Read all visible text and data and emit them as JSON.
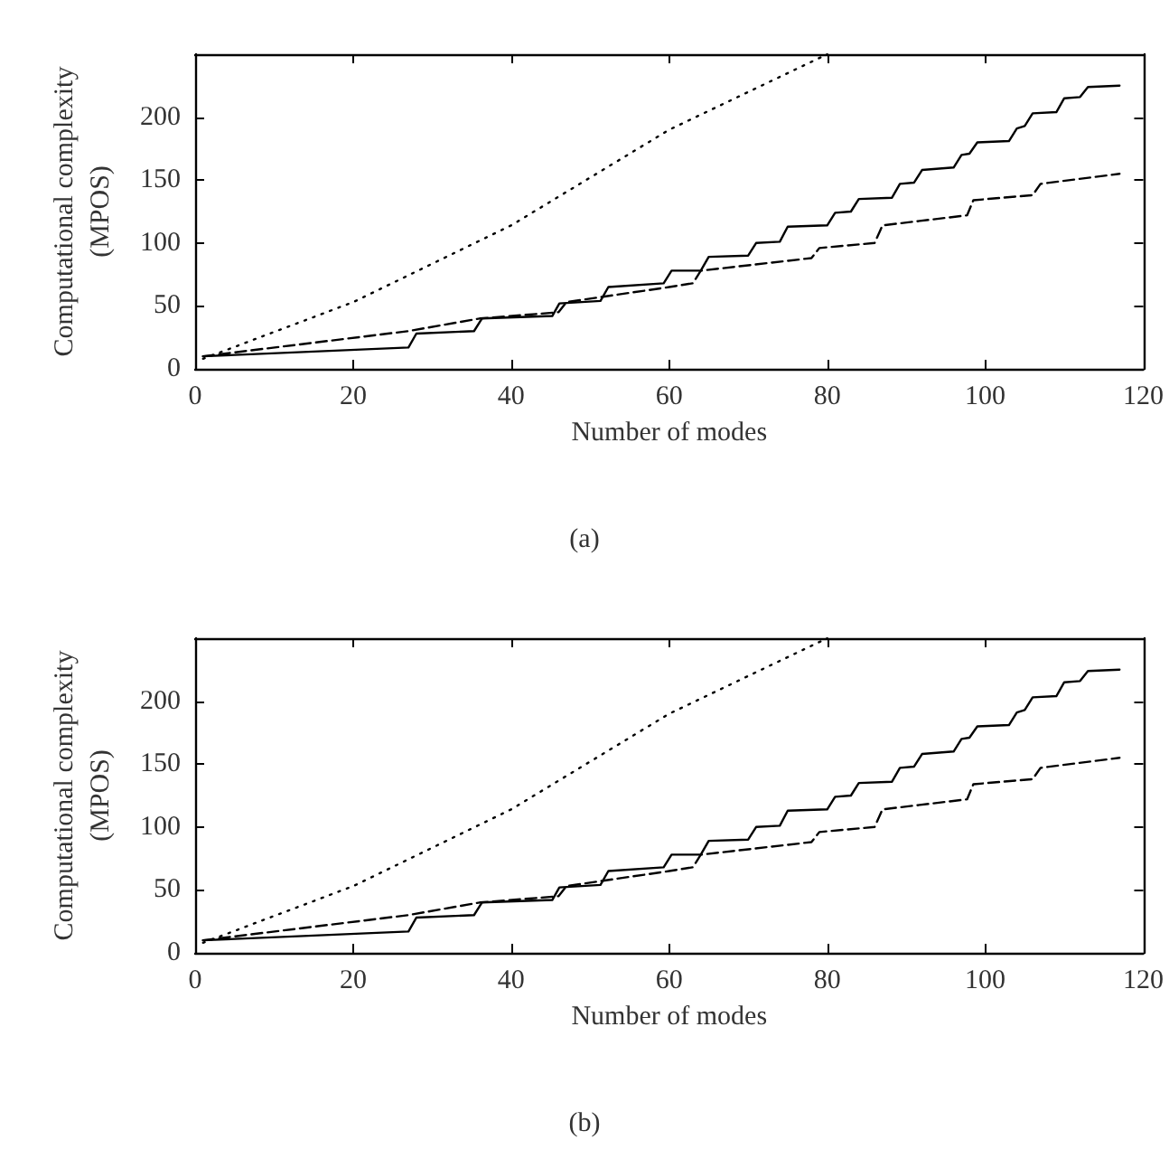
{
  "chart_data": [
    {
      "type": "line",
      "xlabel": "Number of modes",
      "ylabel": "Computational complexity\n(MPOS)",
      "annotations": [
        "(a)"
      ],
      "xlim": [
        0,
        120
      ],
      "ylim": [
        0,
        250
      ],
      "xticks": [
        0,
        20,
        40,
        60,
        80,
        100,
        120
      ],
      "yticks": [
        0,
        50,
        100,
        150,
        200
      ],
      "grid": false,
      "marker": "none",
      "series": [
        {
          "color": "#000000",
          "line_style": "solid",
          "x": [
            1,
            27,
            28,
            35.3,
            36.3,
            45.2,
            46.1,
            51.3,
            52.3,
            59.3,
            60.3,
            64,
            65,
            70,
            71,
            74,
            75,
            80,
            81,
            83,
            84,
            88.2,
            89.2,
            91,
            92,
            96,
            97,
            98,
            99,
            103,
            104,
            105,
            106,
            109,
            110,
            112,
            113,
            117
          ],
          "values": [
            10,
            17,
            28,
            30,
            40,
            42,
            52,
            54,
            65,
            68,
            78,
            78,
            89,
            90,
            100,
            101,
            113,
            114,
            124,
            125,
            135,
            136,
            147,
            148,
            158,
            160,
            170,
            171,
            180,
            181,
            191,
            193,
            203,
            204,
            215,
            216,
            224,
            225
          ]
        },
        {
          "color": "#000000",
          "line_style": "dashed",
          "x": [
            1,
            27,
            36,
            46,
            47,
            60,
            63,
            64,
            78,
            79,
            86,
            87,
            97.7,
            98.5,
            106,
            107,
            117
          ],
          "values": [
            10,
            30,
            40,
            45,
            53,
            65,
            68,
            78,
            88,
            96,
            100,
            114,
            122,
            134,
            138,
            147,
            155
          ]
        },
        {
          "color": "#000000",
          "line_style": "dotted",
          "x": [
            1,
            20,
            40,
            60,
            70,
            80
          ],
          "values": [
            8,
            53,
            114,
            190,
            220,
            250
          ]
        }
      ]
    },
    {
      "type": "line",
      "xlabel": "Number of modes",
      "ylabel": "Computational complexity\n(MPOS)",
      "annotations": [
        "(b)"
      ],
      "xlim": [
        0,
        120
      ],
      "ylim": [
        0,
        250
      ],
      "xticks": [
        0,
        20,
        40,
        60,
        80,
        100,
        120
      ],
      "yticks": [
        0,
        50,
        100,
        150,
        200
      ],
      "grid": false,
      "marker": "none",
      "series": [
        {
          "color": "#000000",
          "line_style": "solid",
          "x": [
            1,
            27,
            28,
            35.3,
            36.3,
            45.2,
            46.1,
            51.3,
            52.3,
            59.3,
            60.3,
            64,
            65,
            70,
            71,
            74,
            75,
            80,
            81,
            83,
            84,
            88.2,
            89.2,
            91,
            92,
            96,
            97,
            98,
            99,
            103,
            104,
            105,
            106,
            109,
            110,
            112,
            113,
            117
          ],
          "values": [
            10,
            17,
            28,
            30,
            40,
            42,
            52,
            54,
            65,
            68,
            78,
            78,
            89,
            90,
            100,
            101,
            113,
            114,
            124,
            125,
            135,
            136,
            147,
            148,
            158,
            160,
            170,
            171,
            180,
            181,
            191,
            193,
            203,
            204,
            215,
            216,
            224,
            225
          ]
        },
        {
          "color": "#000000",
          "line_style": "dashed",
          "x": [
            1,
            27,
            36,
            46,
            47,
            60,
            63,
            64,
            78,
            79,
            86,
            87,
            97.7,
            98.5,
            106,
            107,
            117
          ],
          "values": [
            10,
            30,
            40,
            45,
            53,
            65,
            68,
            78,
            88,
            96,
            100,
            114,
            122,
            134,
            138,
            147,
            155
          ]
        },
        {
          "color": "#000000",
          "line_style": "dotted",
          "x": [
            1,
            20,
            40,
            60,
            70,
            80
          ],
          "values": [
            8,
            53,
            114,
            190,
            220,
            250
          ]
        }
      ]
    }
  ]
}
